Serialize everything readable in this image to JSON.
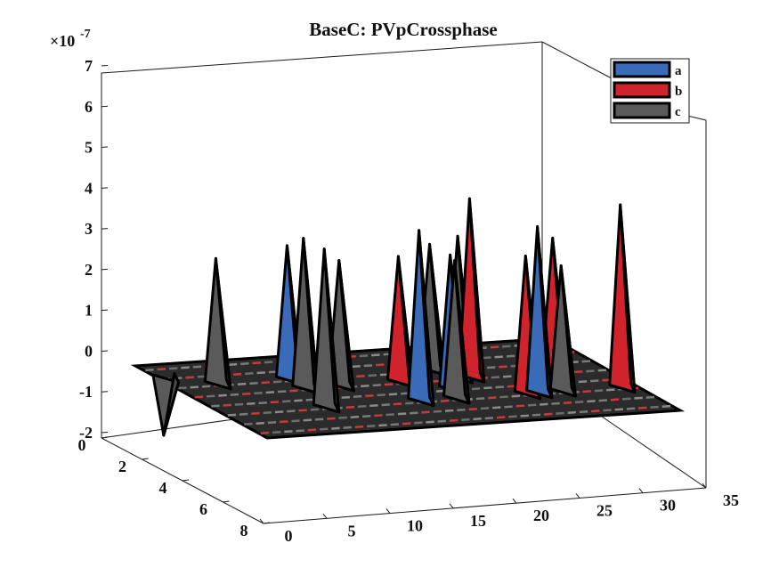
{
  "chart_data": {
    "type": "bar3d",
    "title": "BaseC: PVpCrossphase",
    "exponent_label": "×10",
    "exponent_power": "-7",
    "z_ticks": [
      "-2",
      "-1",
      "0",
      "1",
      "2",
      "3",
      "4",
      "5",
      "6",
      "7"
    ],
    "x_ticks": [
      "0",
      "5",
      "10",
      "15",
      "20",
      "25",
      "30",
      "35"
    ],
    "y_ticks": [
      "0",
      "2",
      "4",
      "6",
      "8"
    ],
    "xlim": [
      0,
      35
    ],
    "ylim": [
      0,
      8
    ],
    "zlim": [
      -2,
      7
    ],
    "legend": {
      "placement": "top-right",
      "entries": [
        {
          "label": "a",
          "color": "#3a6bb8"
        },
        {
          "label": "b",
          "color": "#d0232b"
        },
        {
          "label": "c",
          "color": "#5a5a5a"
        }
      ]
    },
    "series_colors": {
      "a": "#3a6bb8",
      "b": "#d0232b",
      "c": "#5a5a5a"
    },
    "bars": [
      {
        "series": "c",
        "x": 1,
        "y": 1,
        "value": -1.5
      },
      {
        "series": "c",
        "x": 4,
        "y": 2,
        "value": 3.0
      },
      {
        "series": "c",
        "x": 9,
        "y": 5,
        "value": 3.8
      },
      {
        "series": "c",
        "x": 10,
        "y": 3,
        "value": 3.6
      },
      {
        "series": "a",
        "x": 10,
        "y": 2,
        "value": 3.2
      },
      {
        "series": "c",
        "x": 13,
        "y": 3,
        "value": 3.0
      },
      {
        "series": "a",
        "x": 17,
        "y": 5,
        "value": 4.1
      },
      {
        "series": "b",
        "x": 18,
        "y": 3,
        "value": 3.0
      },
      {
        "series": "c",
        "x": 20,
        "y": 5,
        "value": 3.3
      },
      {
        "series": "a",
        "x": 21,
        "y": 4,
        "value": 3.2
      },
      {
        "series": "c",
        "x": 22,
        "y": 2,
        "value": 3.0
      },
      {
        "series": "c",
        "x": 23,
        "y": 3,
        "value": 3.4
      },
      {
        "series": "b",
        "x": 26,
        "y": 5,
        "value": 3.3
      },
      {
        "series": "b",
        "x": 24,
        "y": 3,
        "value": 4.3
      },
      {
        "series": "a",
        "x": 27,
        "y": 5,
        "value": 4.0
      },
      {
        "series": "c",
        "x": 29,
        "y": 5,
        "value": 3.0
      },
      {
        "series": "b",
        "x": 31,
        "y": 3,
        "value": 3.2
      },
      {
        "series": "b",
        "x": 34,
        "y": 5,
        "value": 4.4
      }
    ]
  }
}
